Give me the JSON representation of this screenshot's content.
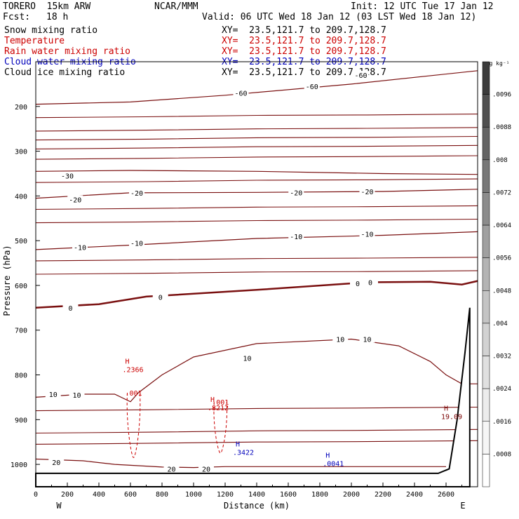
{
  "header": {
    "model": "TORERO  15km ARW",
    "center": "NCAR/MMM",
    "init": "Init: 12 UTC Tue 17 Jan 12",
    "fcst_label": "Fcst:",
    "fcst_value": "18 h",
    "valid": "Valid: 06 UTC Wed 18 Jan 12 (03 LST Wed 18 Jan 12)"
  },
  "fields": [
    {
      "name": "Snow mixing ratio",
      "xy": "XY=  23.5,121.7 to 209.7,128.7",
      "color": "#000000"
    },
    {
      "name": "Temperature",
      "xy": "XY=  23.5,121.7 to 209.7,128.7",
      "color": "#cc0000"
    },
    {
      "name": "Rain water mixing ratio",
      "xy": "XY=  23.5,121.7 to 209.7,128.7",
      "color": "#cc0000"
    },
    {
      "name": "Cloud water mixing ratio",
      "xy": "XY=  23.5,121.7 to 209.7,128.7",
      "color": "#0000bb"
    },
    {
      "name": "Cloud ice mixing ratio",
      "xy": "XY=  23.5,121.7 to 209.7,128.7",
      "color": "#000000"
    }
  ],
  "chart_data": {
    "type": "line",
    "xlabel": "Distance (km)",
    "ylabel": "Pressure (hPa)",
    "xlim": [
      0,
      2800
    ],
    "ylim": [
      1050,
      100
    ],
    "x_ticks": [
      0,
      200,
      400,
      600,
      800,
      1000,
      1200,
      1400,
      1600,
      1800,
      2000,
      2200,
      2400,
      2600
    ],
    "y_ticks": [
      200,
      300,
      400,
      500,
      600,
      700,
      800,
      900,
      1000
    ],
    "x_end_labels": {
      "left": "W",
      "right": "E"
    },
    "temperature_contours": [
      {
        "label": "-60",
        "points": [
          [
            0,
            195
          ],
          [
            600,
            190
          ],
          [
            1200,
            175
          ],
          [
            2000,
            150
          ],
          [
            2800,
            120
          ]
        ],
        "labels_at": [
          [
            1300,
            170
          ],
          [
            1750,
            155
          ],
          [
            2060,
            130
          ]
        ]
      },
      {
        "label": "-30",
        "points": [
          [
            0,
            345
          ],
          [
            600,
            343
          ],
          [
            1400,
            345
          ],
          [
            2200,
            350
          ],
          [
            2800,
            352
          ]
        ],
        "labels_at": [
          [
            200,
            355
          ]
        ]
      },
      {
        "label": "-20",
        "points": [
          [
            0,
            405
          ],
          [
            600,
            393
          ],
          [
            1400,
            392
          ],
          [
            2200,
            390
          ],
          [
            2800,
            385
          ]
        ],
        "labels_at": [
          [
            250,
            408
          ],
          [
            640,
            393
          ],
          [
            1650,
            392
          ],
          [
            2100,
            390
          ]
        ]
      },
      {
        "label": "-10",
        "points": [
          [
            0,
            520
          ],
          [
            600,
            510
          ],
          [
            1400,
            495
          ],
          [
            2200,
            488
          ],
          [
            2800,
            480
          ]
        ],
        "labels_at": [
          [
            280,
            515
          ],
          [
            640,
            505
          ],
          [
            1650,
            490
          ],
          [
            2100,
            485
          ]
        ]
      },
      {
        "label": "0",
        "points": [
          [
            0,
            650
          ],
          [
            400,
            642
          ],
          [
            700,
            625
          ],
          [
            1400,
            610
          ],
          [
            2100,
            593
          ],
          [
            2500,
            592
          ],
          [
            2700,
            598
          ],
          [
            2800,
            590
          ]
        ],
        "labels_at": [
          [
            220,
            650
          ],
          [
            790,
            626
          ],
          [
            2040,
            595
          ],
          [
            2120,
            593
          ]
        ]
      },
      {
        "label": "10",
        "points": [
          [
            0,
            850
          ],
          [
            300,
            843
          ],
          [
            500,
            843
          ],
          [
            600,
            860
          ],
          [
            650,
            840
          ],
          [
            800,
            800
          ],
          [
            1000,
            760
          ],
          [
            1400,
            730
          ],
          [
            2000,
            720
          ],
          [
            2300,
            735
          ],
          [
            2500,
            770
          ],
          [
            2600,
            800
          ],
          [
            2700,
            820
          ],
          [
            2800,
            820
          ]
        ],
        "labels_at": [
          [
            110,
            843
          ],
          [
            260,
            845
          ],
          [
            1340,
            762
          ],
          [
            1930,
            720
          ],
          [
            2100,
            720
          ]
        ]
      },
      {
        "label": "20",
        "points": [
          [
            0,
            988
          ],
          [
            300,
            992
          ],
          [
            500,
            1000
          ],
          [
            800,
            1006
          ],
          [
            1000,
            1007
          ],
          [
            1200,
            1005
          ],
          [
            1500,
            1005
          ],
          [
            2000,
            1005
          ],
          [
            2400,
            1005
          ],
          [
            2600,
            1005
          ]
        ],
        "labels_at": [
          [
            130,
            995
          ],
          [
            860,
            1010
          ],
          [
            1080,
            1010
          ]
        ]
      }
    ],
    "rain_contours": [
      {
        "label": ".001",
        "center_km": 620,
        "top_hPa": 840,
        "bottom_hPa": 985
      },
      {
        "label": ".001",
        "center_km": 1170,
        "top_hPa": 860,
        "bottom_hPa": 975
      }
    ],
    "maxima": [
      {
        "label": "H",
        "value": ".2366",
        "x_km": 580,
        "p_hPa": 775,
        "color": "#cc0000"
      },
      {
        "label": "H",
        "value": ".8212",
        "x_km": 1120,
        "p_hPa": 860,
        "color": "#cc0000"
      },
      {
        "label": "H",
        "value": ".3422",
        "x_km": 1280,
        "p_hPa": 960,
        "color": "#0000bb"
      },
      {
        "label": "H",
        "value": ".0041",
        "x_km": 1850,
        "p_hPa": 985,
        "color": "#0000bb"
      },
      {
        "label": "H",
        "value": "19.09",
        "x_km": 2600,
        "p_hPa": 880,
        "color": "#7a0000"
      }
    ],
    "terrain": [
      [
        0,
        1020
      ],
      [
        2000,
        1020
      ],
      [
        2550,
        1020
      ],
      [
        2620,
        1010
      ],
      [
        2670,
        900
      ],
      [
        2720,
        750
      ],
      [
        2750,
        650
      ],
      [
        2750,
        1050
      ],
      [
        0,
        1050
      ]
    ],
    "colorbar": {
      "unit": "g kg⁻¹",
      "ticks": [
        ".0096",
        ".0088",
        ".008",
        ".0072",
        ".0064",
        ".0056",
        ".0048",
        ".004",
        ".0032",
        ".0024",
        ".0016",
        ".0008"
      ],
      "colors": [
        "#3c3c3c",
        "#505050",
        "#646464",
        "#787878",
        "#8c8c8c",
        "#a0a0a0",
        "#b4b4b4",
        "#c4c4c4",
        "#d2d2d2",
        "#e0e0e0",
        "#ececec",
        "#f6f6f6",
        "#ffffff"
      ]
    }
  }
}
